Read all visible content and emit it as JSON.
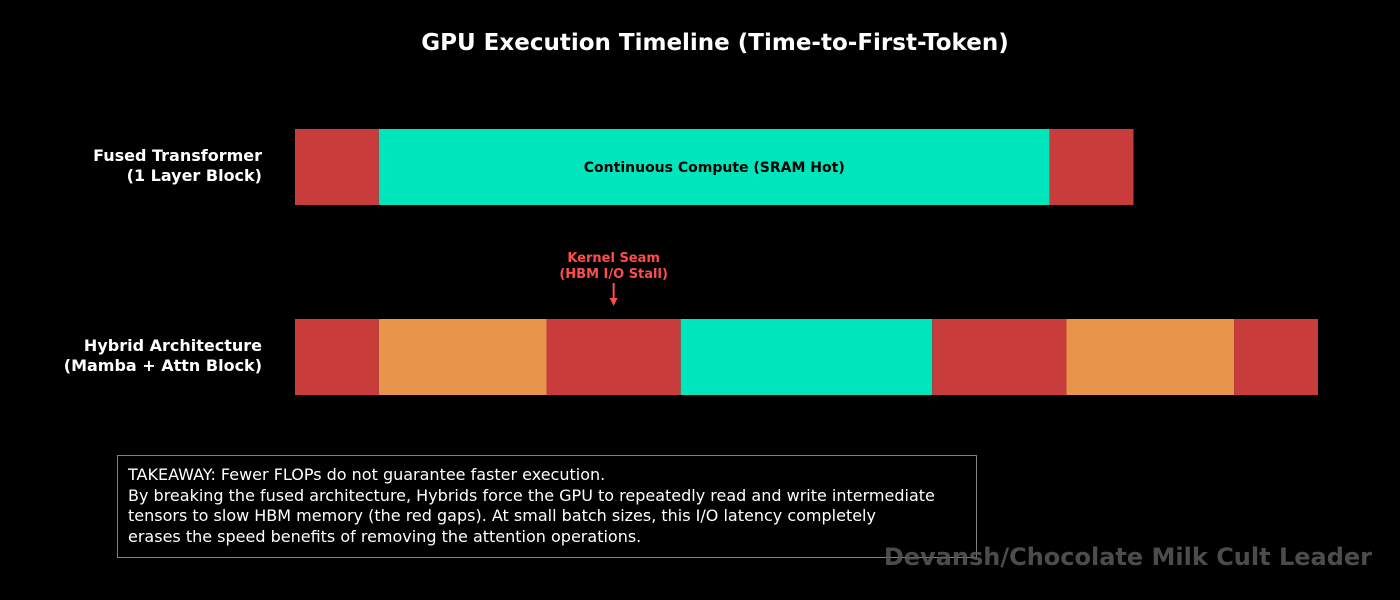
{
  "chart_data": {
    "type": "bar",
    "orientation": "horizontal-stacked-timeline",
    "title": "GPU Execution Timeline (Time-to-First-Token)",
    "xlim": [
      0,
      12.2
    ],
    "rows": [
      {
        "label_lines": [
          "Fused Transformer",
          "(1 Layer Block)"
        ],
        "segments": [
          {
            "start": 0,
            "duration": 1.0,
            "color": "#c93c3c",
            "label": ""
          },
          {
            "start": 1.0,
            "duration": 8.0,
            "color": "#00e5bc",
            "label": "Continuous Compute (SRAM Hot)"
          },
          {
            "start": 9.0,
            "duration": 1.0,
            "color": "#c93c3c",
            "label": ""
          }
        ]
      },
      {
        "label_lines": [
          "Hybrid Architecture",
          "(Mamba + Attn Block)"
        ],
        "segments": [
          {
            "start": 0,
            "duration": 1.0,
            "color": "#c93c3c",
            "label": ""
          },
          {
            "start": 1.0,
            "duration": 2.0,
            "color": "#e8944a",
            "label": ""
          },
          {
            "start": 3.0,
            "duration": 1.6,
            "color": "#c93c3c",
            "label": ""
          },
          {
            "start": 4.6,
            "duration": 3.0,
            "color": "#00e5bc",
            "label": ""
          },
          {
            "start": 7.6,
            "duration": 1.6,
            "color": "#c93c3c",
            "label": ""
          },
          {
            "start": 9.2,
            "duration": 2.0,
            "color": "#e8944a",
            "label": ""
          },
          {
            "start": 11.2,
            "duration": 1.0,
            "color": "#c93c3c",
            "label": ""
          }
        ]
      }
    ],
    "annotation": {
      "row": 1,
      "x": 3.8,
      "text_lines": [
        "Kernel Seam",
        "(HBM I/O Stall)"
      ],
      "color": "#ff4d4d"
    },
    "grid": false,
    "legend": "none"
  },
  "takeaway": {
    "lines": [
      "TAKEAWAY: Fewer FLOPs do not guarantee faster execution.",
      "By breaking the fused architecture, Hybrids force the GPU to repeatedly read and write intermediate",
      "tensors to slow HBM memory (the red gaps). At small batch sizes, this I/O latency completely",
      "erases the speed benefits of removing the attention operations."
    ]
  },
  "watermark": "Devansh/Chocolate Milk Cult Leader"
}
